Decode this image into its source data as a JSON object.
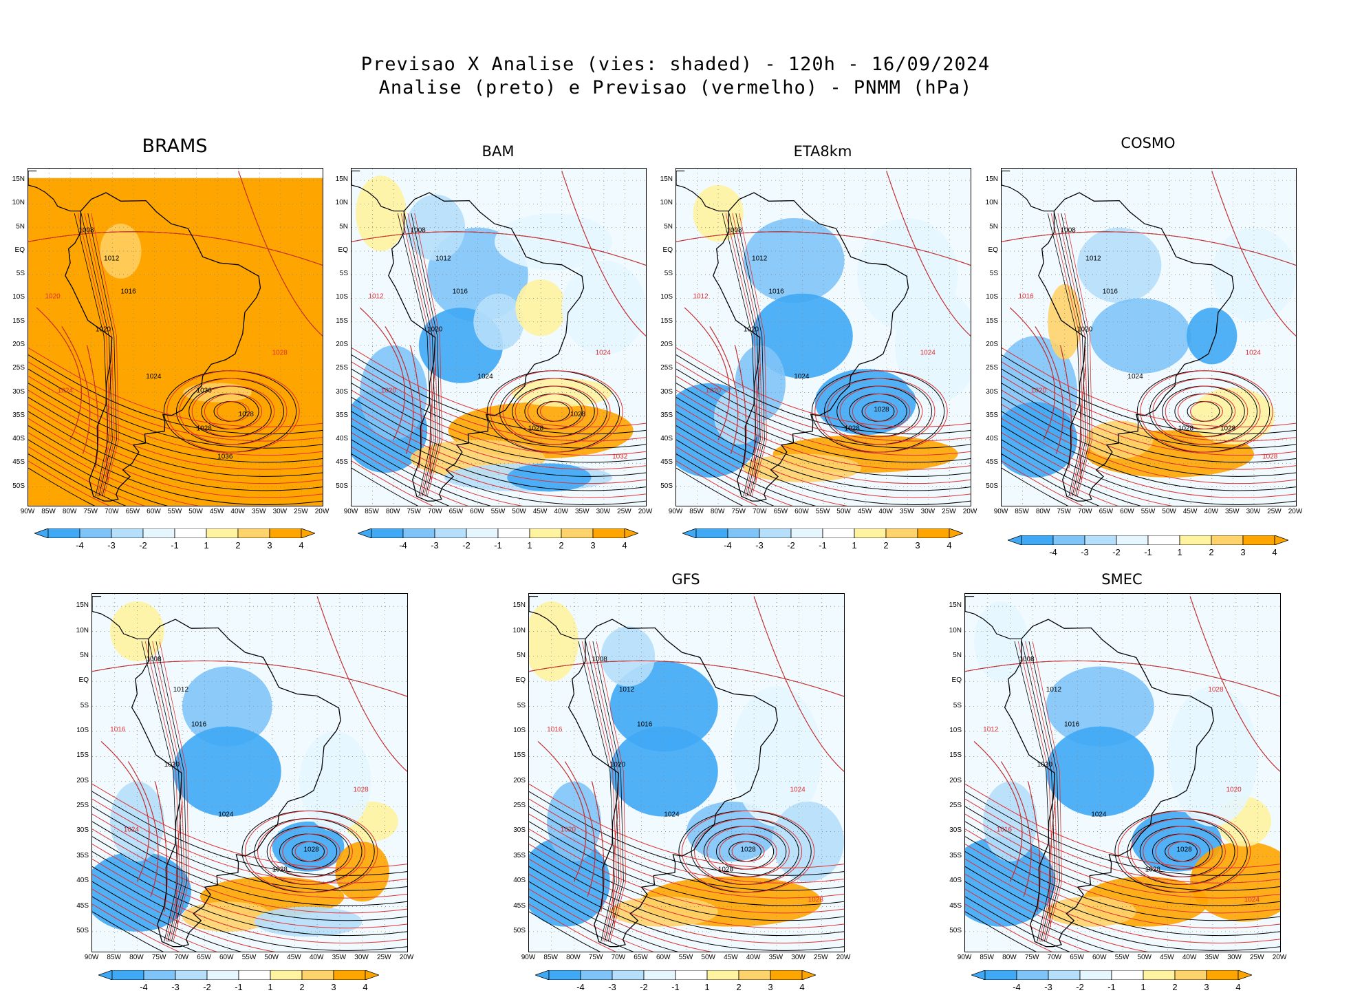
{
  "title": {
    "line1": "Previsao X Analise (vies: shaded) - 120h - 16/09/2024",
    "line2": "Analise (preto) e Previsao (vermelho) - PNMM (hPa)"
  },
  "lat_labels": [
    "15N",
    "10N",
    "5N",
    "EQ",
    "5S",
    "10S",
    "15S",
    "20S",
    "25S",
    "30S",
    "35S",
    "40S",
    "45S",
    "50S"
  ],
  "lon_labels": [
    "90W",
    "85W",
    "80W",
    "75W",
    "70W",
    "65W",
    "60W",
    "55W",
    "50W",
    "45W",
    "40W",
    "35W",
    "30W",
    "25W",
    "20W"
  ],
  "colorbar": {
    "labels": [
      "-4",
      "-3",
      "-2",
      "-1",
      "1",
      "2",
      "3",
      "4"
    ],
    "colors": [
      "#3fa9f5",
      "#7fc4f8",
      "#b6dffb",
      "#e6f6ff",
      "#ffffff",
      "#fff3a0",
      "#ffd36b",
      "#ffa500"
    ]
  },
  "colors": {
    "analysis": "#000000",
    "forecast": "#e03030",
    "coast": "#000000"
  },
  "panels": [
    {
      "name": "BRAMS",
      "isobars": [
        "1008",
        "1012",
        "1016",
        "1020",
        "1024",
        "1028",
        "1036"
      ],
      "forecast_isobars": [
        "1020",
        "1024",
        "1028"
      ]
    },
    {
      "name": "BAM",
      "isobars": [
        "1008",
        "1012",
        "1016",
        "1020",
        "1024",
        "1028"
      ],
      "forecast_isobars": [
        "1012",
        "1020",
        "1024",
        "1032"
      ]
    },
    {
      "name": "ETA8km",
      "isobars": [
        "1008",
        "1012",
        "1016",
        "1020",
        "1024",
        "1028"
      ],
      "forecast_isobars": [
        "1012",
        "1020",
        "1024"
      ]
    },
    {
      "name": "COSMO",
      "isobars": [
        "1008",
        "1012",
        "1016",
        "1020",
        "1024",
        "1028"
      ],
      "forecast_isobars": [
        "1016",
        "1020",
        "1024",
        "1028"
      ]
    },
    {
      "name": "",
      "isobars": [
        "1008",
        "1012",
        "1016",
        "1020",
        "1024",
        "1028"
      ],
      "forecast_isobars": [
        "1016",
        "1024",
        "1028"
      ]
    },
    {
      "name": "GFS",
      "isobars": [
        "1008",
        "1012",
        "1016",
        "1020",
        "1024",
        "1028"
      ],
      "forecast_isobars": [
        "1016",
        "1020",
        "1024",
        "1028"
      ]
    },
    {
      "name": "SMEC",
      "isobars": [
        "1008",
        "1012",
        "1016",
        "1020",
        "1024",
        "1028"
      ],
      "forecast_isobars": [
        "1012",
        "1016",
        "1020",
        "1024",
        "1028"
      ]
    }
  ]
}
